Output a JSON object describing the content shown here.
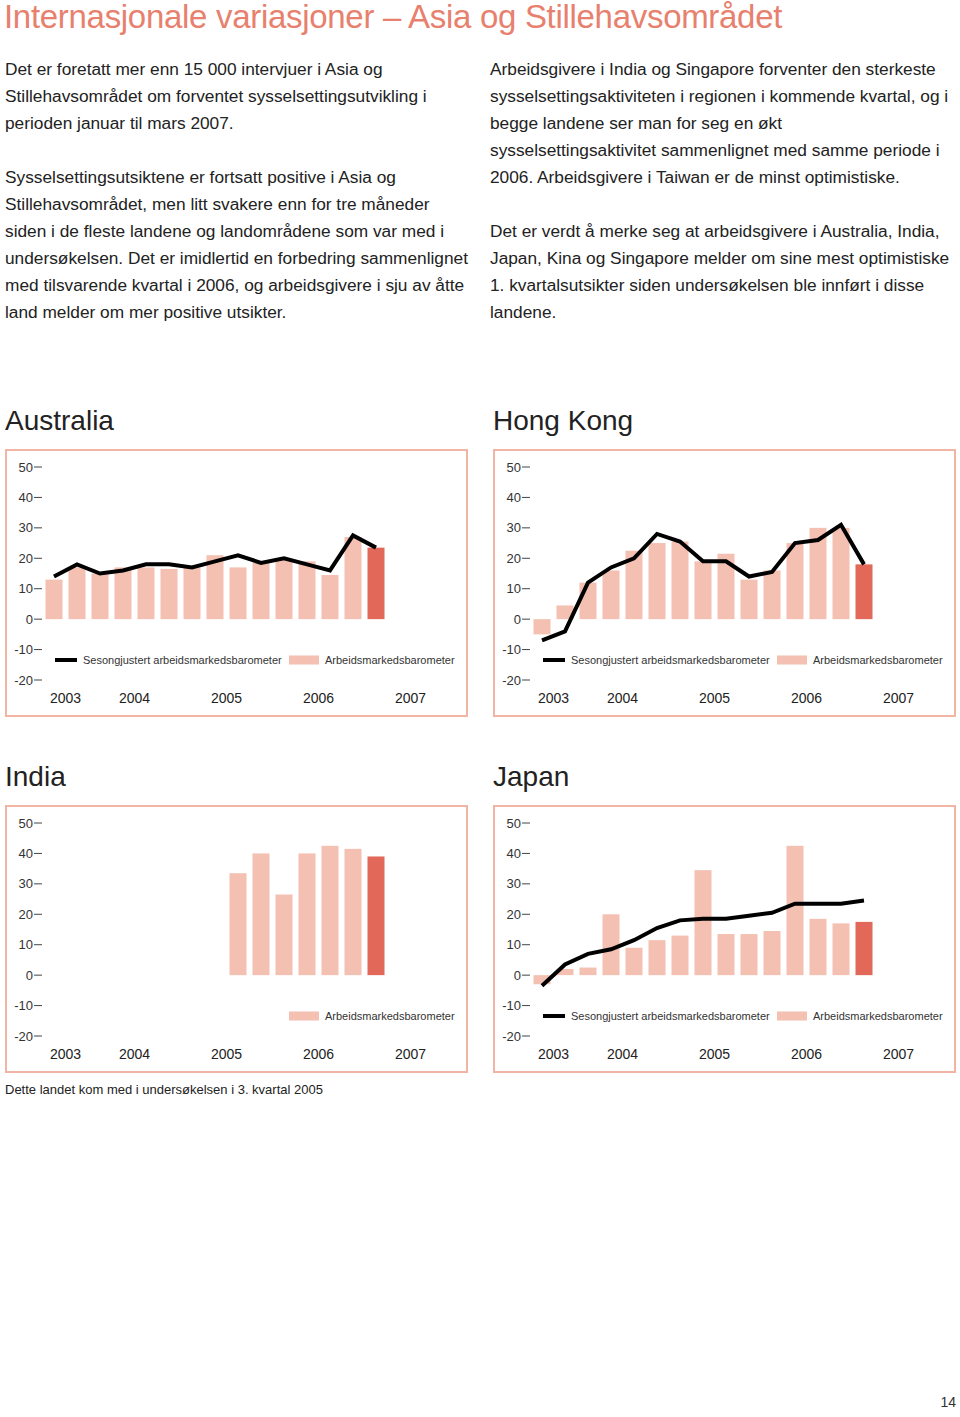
{
  "page": {
    "title": "Internasjonale variasjoner – Asia og Stillehavsområdet",
    "left_column": [
      "Det er foretatt mer enn 15 000 intervjuer i Asia og Stillehavsområdet om forventet sysselsettingsutvikling i perioden januar til mars 2007.",
      "Sysselsettingsutsiktene er fortsatt positive i Asia og Stillehavsområdet, men litt svakere enn for tre måneder siden i de fleste landene og landområdene som var med i undersøkelsen. Det er imidlertid en forbedring sammenlignet med tilsvarende kvartal i 2006, og arbeidsgivere i sju av åtte land melder om mer positive utsikter."
    ],
    "right_column": [
      "Arbeidsgivere i India og Singapore forventer den sterkeste sysselsettingsaktiviteten i regionen i kommende kvartal, og i begge landene ser man for seg en økt sysselsettingsaktivitet sammenlignet med samme periode i 2006. Arbeidsgivere i Taiwan er de minst optimistiske.",
      "Det er verdt å merke seg at arbeidsgivere i Australia, India, Japan, Kina og Singapore melder om sine mest optimistiske 1. kvartalsutsikter siden undersøkelsen ble innført i disse landene."
    ],
    "page_number": "14"
  },
  "chart_data": [
    {
      "type": "bar",
      "title": "Australia",
      "categories": [
        "2003",
        null,
        "2004",
        null,
        null,
        null,
        "2005",
        null,
        null,
        null,
        "2006",
        null,
        null,
        null,
        "2007"
      ],
      "series": [
        {
          "name": "Sesongjustert arbeidsmarkedsbarometer",
          "type": "line",
          "color": "#000000",
          "values": [
            14,
            18,
            15,
            16,
            18,
            18,
            17,
            19,
            21,
            18.5,
            20,
            18,
            16,
            27.5,
            23.5
          ]
        },
        {
          "name": "Arbeidsmarkedsbarometer",
          "type": "bar",
          "color": "#f4c0b2",
          "colors": [
            "#f4c0b2",
            "#f4c0b2",
            "#f4c0b2",
            "#f4c0b2",
            "#f4c0b2",
            "#f4c0b2",
            "#f4c0b2",
            "#f4c0b2",
            "#f4c0b2",
            "#f4c0b2",
            "#f4c0b2",
            "#f4c0b2",
            "#f4c0b2",
            "#f4c0b2",
            "#e2685a"
          ],
          "values": [
            13,
            17,
            15,
            17,
            17,
            16.5,
            17,
            21,
            17,
            19,
            19.5,
            19,
            14.5,
            27,
            23.5
          ]
        }
      ],
      "ylim": [
        -20,
        50
      ],
      "yticks": [
        -20,
        -10,
        0,
        10,
        20,
        30,
        40,
        50
      ],
      "legend": "bottom"
    },
    {
      "type": "bar",
      "title": "Hong Kong",
      "categories": [
        "2003",
        null,
        "2004",
        null,
        null,
        null,
        "2005",
        null,
        null,
        null,
        "2006",
        null,
        null,
        null,
        "2007"
      ],
      "series": [
        {
          "name": "Sesongjustert arbeidsmarkedsbarometer",
          "type": "line",
          "color": "#000000",
          "values": [
            -7,
            -4,
            12,
            17,
            20,
            28,
            25.5,
            19,
            19,
            14,
            15.5,
            25,
            26,
            31,
            18
          ]
        },
        {
          "name": "Arbeidsmarkedsbarometer",
          "type": "bar",
          "color": "#f4c0b2",
          "colors": [
            "#f4c0b2",
            "#f4c0b2",
            "#f4c0b2",
            "#f4c0b2",
            "#f4c0b2",
            "#f4c0b2",
            "#f4c0b2",
            "#f4c0b2",
            "#f4c0b2",
            "#f4c0b2",
            "#f4c0b2",
            "#f4c0b2",
            "#f4c0b2",
            "#f4c0b2",
            "#e2685a"
          ],
          "values": [
            -5,
            4.5,
            12,
            16,
            22.5,
            25,
            25.5,
            19,
            21.5,
            13,
            16,
            25,
            30,
            30,
            18
          ]
        }
      ],
      "ylim": [
        -20,
        50
      ],
      "yticks": [
        -20,
        -10,
        0,
        10,
        20,
        30,
        40,
        50
      ],
      "legend": "bottom"
    },
    {
      "type": "bar",
      "title": "India",
      "categories": [
        "2003",
        null,
        "2004",
        null,
        null,
        null,
        "2005",
        null,
        null,
        null,
        "2006",
        null,
        null,
        null,
        "2007"
      ],
      "series": [
        {
          "name": "Arbeidsmarkedsbarometer",
          "type": "bar",
          "color": "#f4c0b2",
          "colors": [
            "#f4c0b2",
            "#f4c0b2",
            "#f4c0b2",
            "#f4c0b2",
            "#f4c0b2",
            "#f4c0b2",
            "#f4c0b2",
            "#f4c0b2",
            "#f4c0b2",
            "#f4c0b2",
            "#f4c0b2",
            "#f4c0b2",
            "#f4c0b2",
            "#f4c0b2",
            "#e2685a"
          ],
          "values": [
            null,
            null,
            null,
            null,
            null,
            null,
            null,
            null,
            33.5,
            40,
            26.5,
            40,
            42.5,
            41.5,
            39
          ]
        }
      ],
      "ylim": [
        -20,
        50
      ],
      "yticks": [
        -20,
        -10,
        0,
        10,
        20,
        30,
        40,
        50
      ],
      "legend": "bottom",
      "annotation": "Dette landet kom med i undersøkelsen i 3. kvartal 2005"
    },
    {
      "type": "bar",
      "title": "Japan",
      "categories": [
        "2003",
        null,
        "2004",
        null,
        null,
        null,
        "2005",
        null,
        null,
        null,
        "2006",
        null,
        null,
        null,
        "2007"
      ],
      "series": [
        {
          "name": "Sesongjustert arbeidsmarkedsbarometer",
          "type": "line",
          "color": "#000000",
          "values": [
            -3.5,
            3.5,
            7,
            8.5,
            11.5,
            15.5,
            18,
            18.5,
            18.5,
            19.5,
            20.5,
            23.5,
            23.5,
            23.5,
            24.5
          ]
        },
        {
          "name": "Arbeidsmarkedsbarometer",
          "type": "bar",
          "color": "#f4c0b2",
          "colors": [
            "#f4c0b2",
            "#f4c0b2",
            "#f4c0b2",
            "#f4c0b2",
            "#f4c0b2",
            "#f4c0b2",
            "#f4c0b2",
            "#f4c0b2",
            "#f4c0b2",
            "#f4c0b2",
            "#f4c0b2",
            "#f4c0b2",
            "#f4c0b2",
            "#f4c0b2",
            "#e2685a"
          ],
          "values": [
            -3,
            2,
            2.5,
            20,
            9,
            11.5,
            13,
            34.5,
            13.5,
            13.5,
            14.5,
            42.5,
            18.5,
            17,
            17.5
          ]
        }
      ],
      "ylim": [
        -20,
        50
      ],
      "yticks": [
        -20,
        -10,
        0,
        10,
        20,
        30,
        40,
        50
      ],
      "legend": "bottom"
    }
  ]
}
